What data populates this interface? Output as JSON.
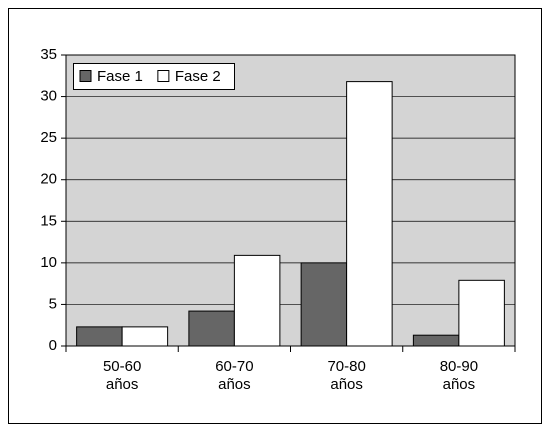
{
  "chart_data": {
    "type": "bar",
    "categories": [
      "50-60 años",
      "60-70 años",
      "70-80 años",
      "80-90 años"
    ],
    "series": [
      {
        "name": "Fase 1",
        "color": "#666666",
        "values": [
          2.3,
          4.2,
          10,
          1.3
        ]
      },
      {
        "name": "Fase 2",
        "color": "#ffffff",
        "values": [
          2.3,
          10.9,
          31.8,
          7.9
        ]
      }
    ],
    "ylim": [
      0,
      35
    ],
    "yticks": [
      0,
      5,
      10,
      15,
      20,
      25,
      30,
      35
    ],
    "grid": true,
    "legend": "top-left"
  }
}
